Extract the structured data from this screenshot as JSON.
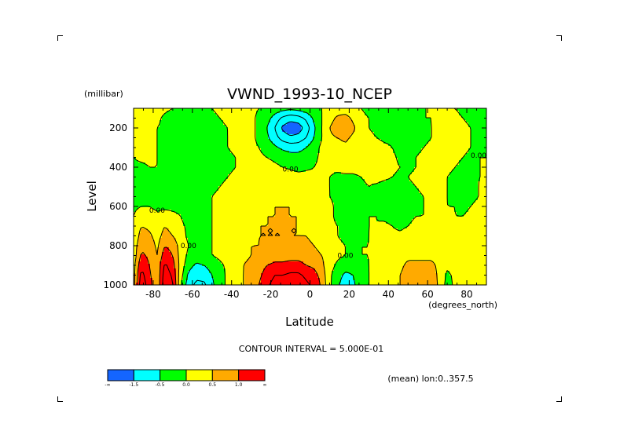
{
  "chart_data": {
    "type": "heatmap",
    "title": "VWND_1993-10_NCEP",
    "xlabel": "Latitude",
    "x_unit_label": "(degrees_north)",
    "ylabel": "Level",
    "y_unit_label": "(millibar)",
    "xlim": [
      -90,
      90
    ],
    "ylim": [
      1000,
      100
    ],
    "y_inverted": true,
    "x_ticks": [
      -80,
      -60,
      -40,
      -20,
      0,
      20,
      40,
      60,
      80
    ],
    "x_tick_labels": [
      "-80",
      "-60",
      "-40",
      "-20",
      "0",
      "20",
      "40",
      "60",
      "80"
    ],
    "y_ticks": [
      200,
      400,
      600,
      800,
      1000
    ],
    "y_tick_labels": [
      "200",
      "400",
      "600",
      "800",
      "1000"
    ],
    "contour_interval_text": "CONTOUR INTERVAL = 5.000E-01",
    "mean_text": "(mean) lon:0..357.5",
    "contour_label": "0.00",
    "colorbar": {
      "levels": [
        -2.0,
        -1.5,
        -1.0,
        -0.5,
        0.0,
        0.5,
        1.0,
        1.5
      ],
      "tick_labels": [
        "-∞",
        "-1.5",
        "-0.5",
        "0.0",
        "0.5",
        "1.0",
        "∞"
      ],
      "colors": [
        "#1465ff",
        "#00ffff",
        "#00ff00",
        "#ffff00",
        "#ffaa00",
        "#ff0000"
      ],
      "border_color": "#000000"
    },
    "lat": [
      -90,
      -86,
      -82,
      -78,
      -74,
      -70,
      -66,
      -62,
      -58,
      -54,
      -50,
      -46,
      -42,
      -38,
      -34,
      -30,
      -26,
      -22,
      -18,
      -14,
      -10,
      -6,
      -2,
      2,
      6,
      10,
      14,
      18,
      22,
      26,
      30,
      34,
      38,
      42,
      46,
      50,
      54,
      58,
      62,
      66,
      70,
      74,
      78,
      82,
      86,
      90
    ],
    "level": [
      1000,
      950,
      900,
      850,
      800,
      750,
      700,
      650,
      600,
      550,
      500,
      450,
      400,
      350,
      300,
      250,
      200,
      150,
      100
    ],
    "values": [
      [
        0.3,
        1.9,
        1.2,
        0.6,
        1.9,
        1.6,
        0.1,
        -0.8,
        -1.1,
        -1.1,
        -0.6,
        -0.2,
        0.1,
        0.3,
        0.5,
        0.7,
        1.0,
        1.4,
        1.7,
        1.7,
        1.8,
        1.8,
        1.6,
        1.4,
        0.9,
        0.1,
        -0.4,
        -0.8,
        -0.6,
        -0.2,
        0.0,
        0.1,
        0.2,
        0.4,
        0.5,
        0.8,
        1.0,
        1.0,
        0.8,
        0.4,
        -0.2,
        0.1,
        0.3,
        0.4,
        0.3,
        0.3
      ],
      [
        0.3,
        1.7,
        1.1,
        0.6,
        1.8,
        1.4,
        0.2,
        -0.6,
        -0.9,
        -0.8,
        -0.5,
        -0.2,
        0.1,
        0.3,
        0.5,
        0.7,
        0.9,
        1.2,
        1.5,
        1.5,
        1.6,
        1.6,
        1.4,
        1.2,
        0.8,
        0.1,
        -0.3,
        -0.6,
        -0.5,
        -0.2,
        0.0,
        0.1,
        0.2,
        0.4,
        0.5,
        0.7,
        0.8,
        0.9,
        0.7,
        0.4,
        -0.1,
        0.1,
        0.3,
        0.4,
        0.3,
        0.3
      ],
      [
        0.3,
        1.4,
        1.0,
        0.6,
        1.6,
        1.2,
        0.3,
        -0.3,
        -0.6,
        -0.5,
        -0.3,
        -0.1,
        0.1,
        0.3,
        0.5,
        0.6,
        0.8,
        1.0,
        1.1,
        1.1,
        1.2,
        1.2,
        1.0,
        0.9,
        0.6,
        0.2,
        -0.1,
        -0.3,
        -0.3,
        -0.1,
        0.0,
        0.1,
        0.2,
        0.3,
        0.4,
        0.6,
        0.6,
        0.6,
        0.6,
        0.4,
        0.1,
        0.2,
        0.3,
        0.4,
        0.3,
        0.3
      ],
      [
        0.2,
        1.1,
        0.9,
        0.5,
        1.3,
        1.0,
        0.3,
        -0.1,
        -0.2,
        -0.1,
        0.0,
        0.1,
        0.2,
        0.3,
        0.4,
        0.5,
        0.6,
        0.7,
        0.8,
        0.8,
        0.8,
        0.8,
        0.7,
        0.6,
        0.5,
        0.3,
        0.1,
        0.0,
        -0.1,
        0.0,
        0.0,
        0.1,
        0.2,
        0.3,
        0.3,
        0.4,
        0.4,
        0.4,
        0.4,
        0.3,
        0.2,
        0.2,
        0.3,
        0.4,
        0.3,
        0.3
      ],
      [
        0.2,
        0.9,
        0.8,
        0.4,
        1.0,
        0.8,
        0.3,
        0.0,
        -0.1,
        -0.1,
        0.0,
        0.1,
        0.2,
        0.3,
        0.4,
        0.5,
        0.5,
        0.6,
        0.6,
        0.6,
        0.6,
        0.6,
        0.6,
        0.5,
        0.4,
        0.3,
        0.1,
        0.0,
        -0.1,
        0.0,
        0.0,
        0.1,
        0.2,
        0.2,
        0.2,
        0.3,
        0.3,
        0.3,
        0.3,
        0.2,
        0.2,
        0.1,
        0.2,
        0.3,
        0.3,
        0.3
      ],
      [
        0.1,
        0.7,
        0.6,
        0.3,
        0.7,
        0.5,
        0.2,
        -0.1,
        -0.1,
        -0.1,
        0.0,
        0.1,
        0.2,
        0.3,
        0.4,
        0.4,
        0.5,
        0.5,
        0.5,
        0.5,
        0.5,
        0.5,
        0.5,
        0.4,
        0.3,
        0.2,
        0.0,
        -0.1,
        -0.1,
        -0.1,
        0.0,
        0.1,
        0.1,
        0.1,
        0.1,
        0.2,
        0.2,
        0.2,
        0.2,
        0.2,
        0.1,
        0.1,
        0.2,
        0.3,
        0.3,
        0.3
      ],
      [
        0.1,
        0.5,
        0.4,
        0.2,
        0.5,
        0.3,
        0.1,
        -0.1,
        -0.2,
        -0.1,
        0.0,
        0.1,
        0.2,
        0.3,
        0.4,
        0.4,
        0.5,
        0.5,
        0.5,
        0.5,
        0.5,
        0.5,
        0.4,
        0.4,
        0.3,
        0.1,
        0.0,
        -0.1,
        -0.2,
        -0.1,
        0.0,
        0.0,
        0.1,
        0.0,
        -0.1,
        0.0,
        0.1,
        0.1,
        0.1,
        0.1,
        0.1,
        0.1,
        0.1,
        0.2,
        0.3,
        0.3
      ],
      [
        0.0,
        0.3,
        0.2,
        0.1,
        0.2,
        0.1,
        0.0,
        -0.2,
        -0.2,
        -0.1,
        0.0,
        0.1,
        0.2,
        0.3,
        0.3,
        0.4,
        0.4,
        0.5,
        0.5,
        0.5,
        0.5,
        0.5,
        0.4,
        0.3,
        0.2,
        0.1,
        -0.1,
        -0.2,
        -0.2,
        -0.1,
        0.0,
        0.0,
        -0.1,
        -0.2,
        -0.2,
        -0.1,
        0.0,
        0.0,
        0.1,
        0.1,
        0.1,
        0.0,
        0.0,
        0.1,
        0.2,
        0.3
      ],
      [
        -0.1,
        0.0,
        0.0,
        -0.1,
        -0.1,
        -0.1,
        -0.1,
        -0.2,
        -0.2,
        -0.1,
        0.0,
        0.1,
        0.2,
        0.3,
        0.3,
        0.4,
        0.4,
        0.4,
        0.5,
        0.5,
        0.5,
        0.4,
        0.4,
        0.3,
        0.2,
        0.1,
        -0.1,
        -0.2,
        -0.2,
        -0.1,
        0.0,
        -0.1,
        -0.2,
        -0.3,
        -0.3,
        -0.2,
        -0.1,
        0.0,
        0.1,
        0.1,
        0.0,
        0.0,
        -0.1,
        0.0,
        0.1,
        0.2
      ],
      [
        -0.2,
        -0.2,
        -0.1,
        -0.2,
        -0.2,
        -0.2,
        -0.2,
        -0.2,
        -0.2,
        -0.1,
        0.0,
        0.1,
        0.2,
        0.3,
        0.3,
        0.4,
        0.4,
        0.4,
        0.4,
        0.4,
        0.4,
        0.4,
        0.3,
        0.3,
        0.2,
        0.0,
        -0.1,
        -0.2,
        -0.2,
        -0.1,
        0.0,
        -0.1,
        -0.2,
        -0.3,
        -0.3,
        -0.2,
        -0.1,
        0.0,
        0.1,
        0.1,
        0.0,
        -0.1,
        -0.1,
        -0.1,
        0.0,
        0.1
      ],
      [
        -0.3,
        -0.3,
        -0.2,
        -0.2,
        -0.2,
        -0.2,
        -0.2,
        -0.2,
        -0.2,
        -0.1,
        -0.1,
        0.0,
        0.1,
        0.2,
        0.3,
        0.4,
        0.4,
        0.4,
        0.4,
        0.4,
        0.4,
        0.3,
        0.3,
        0.2,
        0.1,
        0.0,
        -0.1,
        -0.2,
        -0.2,
        -0.1,
        0.0,
        -0.1,
        -0.2,
        -0.2,
        -0.2,
        -0.1,
        0.0,
        0.1,
        0.2,
        0.1,
        0.0,
        -0.1,
        -0.2,
        -0.1,
        0.0,
        0.1
      ],
      [
        -0.2,
        -0.2,
        -0.1,
        -0.1,
        -0.2,
        -0.2,
        -0.2,
        -0.2,
        -0.2,
        -0.1,
        -0.1,
        -0.1,
        0.0,
        0.1,
        0.2,
        0.3,
        0.4,
        0.4,
        0.4,
        0.4,
        0.3,
        0.2,
        0.2,
        0.1,
        0.1,
        0.0,
        -0.1,
        -0.1,
        -0.1,
        0.0,
        0.1,
        0.2,
        0.1,
        0.0,
        -0.1,
        0.0,
        0.1,
        0.2,
        0.2,
        0.1,
        0.0,
        -0.1,
        -0.2,
        -0.1,
        0.0,
        0.0
      ],
      [
        -0.1,
        -0.1,
        0.0,
        0.0,
        -0.1,
        -0.2,
        -0.2,
        -0.2,
        -0.2,
        -0.2,
        -0.1,
        -0.1,
        -0.1,
        0.0,
        0.1,
        0.2,
        0.2,
        0.2,
        0.1,
        0.0,
        -0.1,
        -0.2,
        -0.1,
        0.0,
        0.1,
        0.1,
        0.1,
        0.2,
        0.2,
        0.2,
        0.3,
        0.3,
        0.2,
        0.1,
        0.0,
        -0.1,
        0.0,
        0.1,
        0.2,
        0.2,
        0.1,
        0.0,
        -0.1,
        -0.1,
        0.0,
        0.0
      ],
      [
        0.0,
        0.1,
        0.1,
        0.0,
        -0.1,
        -0.2,
        -0.2,
        -0.2,
        -0.2,
        -0.2,
        -0.1,
        -0.1,
        -0.1,
        0.0,
        0.1,
        0.1,
        0.1,
        0.0,
        -0.1,
        -0.2,
        -0.3,
        -0.3,
        -0.2,
        -0.1,
        0.1,
        0.2,
        0.3,
        0.3,
        0.3,
        0.3,
        0.3,
        0.3,
        0.2,
        0.1,
        -0.1,
        -0.1,
        0.0,
        0.1,
        0.2,
        0.2,
        0.2,
        0.1,
        0.0,
        -0.1,
        0.0,
        0.0
      ],
      [
        0.1,
        0.2,
        0.1,
        0.0,
        -0.1,
        -0.2,
        -0.2,
        -0.2,
        -0.2,
        -0.2,
        -0.1,
        -0.1,
        0.0,
        0.1,
        0.1,
        0.1,
        0.0,
        -0.2,
        -0.4,
        -0.6,
        -0.7,
        -0.7,
        -0.5,
        -0.2,
        0.1,
        0.3,
        0.3,
        0.4,
        0.3,
        0.3,
        0.2,
        0.2,
        0.1,
        0.0,
        -0.2,
        -0.2,
        -0.1,
        0.0,
        0.1,
        0.2,
        0.2,
        0.2,
        0.1,
        0.0,
        -0.1,
        -0.1
      ],
      [
        0.2,
        0.2,
        0.1,
        0.0,
        -0.1,
        -0.2,
        -0.2,
        -0.2,
        -0.2,
        -0.2,
        -0.2,
        -0.1,
        0.0,
        0.1,
        0.2,
        0.1,
        -0.1,
        -0.4,
        -0.8,
        -1.2,
        -1.4,
        -1.3,
        -1.0,
        -0.5,
        0.0,
        0.4,
        0.5,
        0.6,
        0.4,
        0.2,
        0.1,
        0.0,
        -0.1,
        -0.1,
        -0.2,
        -0.2,
        -0.2,
        -0.1,
        0.0,
        0.1,
        0.2,
        0.2,
        0.1,
        0.0,
        -0.1,
        -0.1
      ],
      [
        0.2,
        0.2,
        0.1,
        0.0,
        -0.1,
        -0.2,
        -0.2,
        -0.2,
        -0.2,
        -0.2,
        -0.2,
        -0.1,
        0.0,
        0.2,
        0.2,
        0.1,
        -0.1,
        -0.5,
        -1.0,
        -1.6,
        -1.9,
        -1.8,
        -1.3,
        -0.6,
        0.0,
        0.5,
        0.8,
        0.9,
        0.6,
        0.2,
        0.0,
        -0.1,
        -0.2,
        -0.3,
        -0.3,
        -0.2,
        -0.2,
        -0.1,
        0.0,
        0.1,
        0.2,
        0.2,
        0.1,
        0.0,
        -0.1,
        -0.1
      ],
      [
        0.1,
        0.2,
        0.2,
        0.1,
        -0.1,
        -0.2,
        -0.2,
        -0.2,
        -0.2,
        -0.1,
        -0.1,
        0.0,
        0.1,
        0.2,
        0.2,
        0.1,
        -0.1,
        -0.3,
        -0.7,
        -1.1,
        -1.3,
        -1.2,
        -0.9,
        -0.4,
        0.0,
        0.3,
        0.6,
        0.7,
        0.4,
        0.1,
        0.0,
        -0.1,
        -0.2,
        -0.3,
        -0.2,
        -0.2,
        -0.1,
        0.0,
        0.0,
        0.1,
        0.1,
        0.1,
        0.0,
        -0.1,
        -0.1,
        -0.1
      ],
      [
        0.2,
        0.3,
        0.3,
        0.2,
        0.1,
        0.0,
        -0.1,
        -0.1,
        -0.1,
        0.0,
        0.0,
        0.1,
        0.2,
        0.2,
        0.2,
        0.1,
        0.0,
        -0.1,
        -0.2,
        -0.3,
        -0.4,
        -0.3,
        -0.2,
        -0.1,
        0.0,
        0.1,
        0.2,
        0.2,
        0.1,
        0.0,
        -0.1,
        -0.1,
        -0.1,
        -0.1,
        -0.1,
        -0.1,
        -0.1,
        0.0,
        0.0,
        0.0,
        0.0,
        0.0,
        -0.1,
        -0.1,
        -0.1,
        -0.1
      ]
    ]
  }
}
